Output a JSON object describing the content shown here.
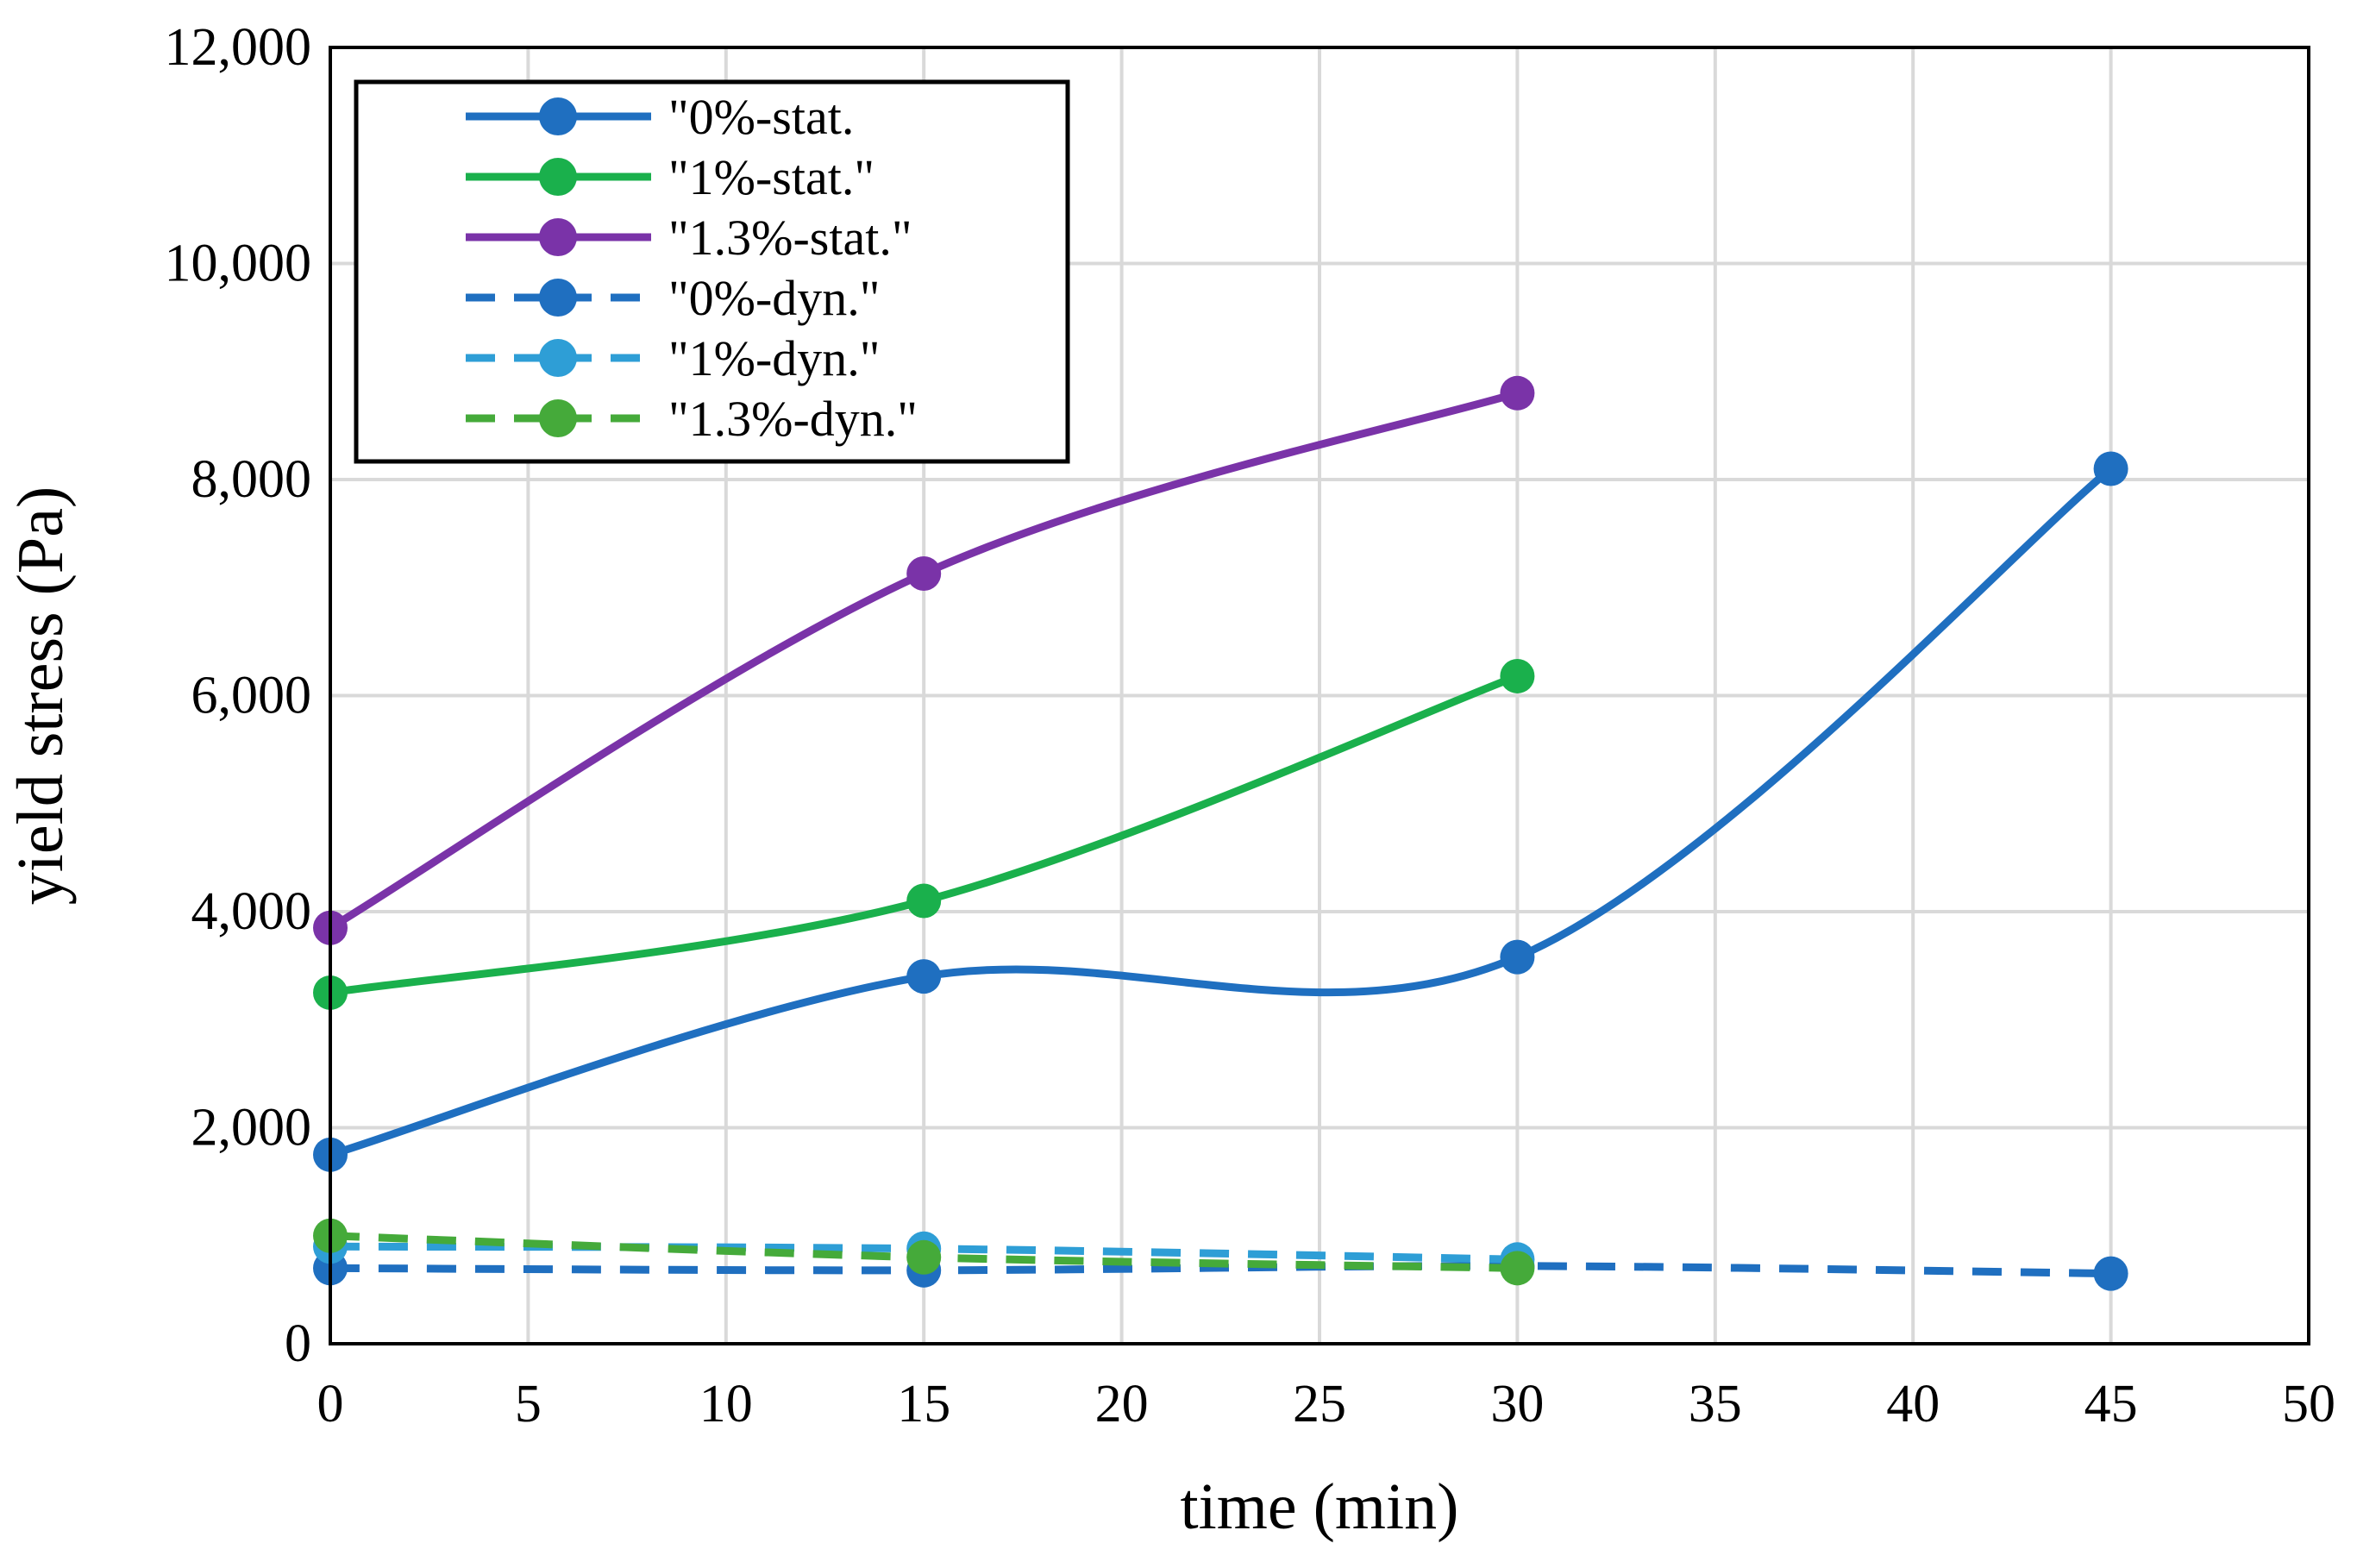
{
  "chart_data": {
    "type": "line",
    "title": "",
    "xlabel": "time (min)",
    "ylabel": "yield stress (Pa)",
    "xlim": [
      0,
      50
    ],
    "ylim": [
      0,
      12000
    ],
    "xticks": [
      0,
      5,
      10,
      15,
      20,
      25,
      30,
      35,
      40,
      45,
      50
    ],
    "yticks": [
      0,
      2000,
      4000,
      6000,
      8000,
      10000,
      12000
    ],
    "xtick_labels": [
      "0",
      "5",
      "10",
      "15",
      "20",
      "25",
      "30",
      "35",
      "40",
      "45",
      "50"
    ],
    "ytick_labels": [
      "0",
      "2,000",
      "4,000",
      "6,000",
      "8,000",
      "10,000",
      "12,000"
    ],
    "grid": true,
    "legend_position": "top-left",
    "series": [
      {
        "name": "\"0%-stat.",
        "color": "#1F6FC0",
        "dashed": false,
        "x": [
          0,
          15,
          30,
          45
        ],
        "y": [
          1750,
          3400,
          3580,
          8100
        ]
      },
      {
        "name": "\"1%-stat.\"",
        "color": "#1AB04C",
        "dashed": false,
        "x": [
          0,
          15,
          30
        ],
        "y": [
          3250,
          4100,
          6180
        ]
      },
      {
        "name": "\"1.3%-stat.\"",
        "color": "#7A33A8",
        "dashed": false,
        "x": [
          0,
          15,
          30
        ],
        "y": [
          3850,
          7130,
          8800
        ]
      },
      {
        "name": "\"0%-dyn.\"",
        "color": "#1F6FC0",
        "dashed": true,
        "x": [
          0,
          15,
          30,
          45
        ],
        "y": [
          700,
          680,
          720,
          650
        ]
      },
      {
        "name": "\"1%-dyn.\"",
        "color": "#2E9ED6",
        "dashed": true,
        "x": [
          0,
          15,
          30
        ],
        "y": [
          900,
          880,
          780
        ]
      },
      {
        "name": "\"1.3%-dyn.\"",
        "color": "#45AA3A",
        "dashed": true,
        "x": [
          0,
          15,
          30
        ],
        "y": [
          1000,
          800,
          700
        ]
      }
    ]
  }
}
